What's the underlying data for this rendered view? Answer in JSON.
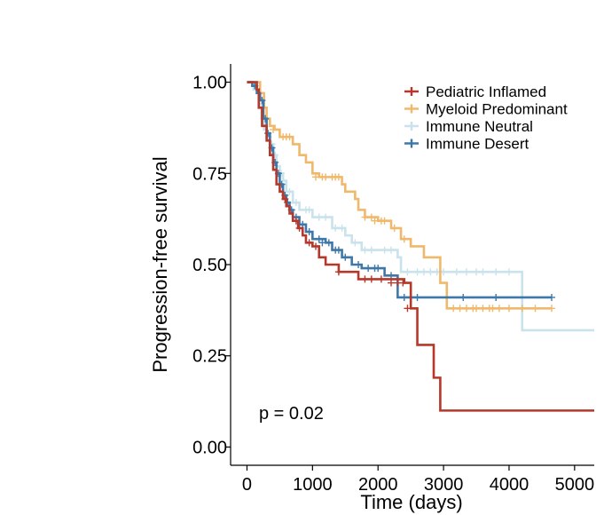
{
  "chart_data": {
    "type": "line",
    "subtype": "kaplan-meier",
    "title": "",
    "xlabel": "Time (days)",
    "ylabel": "Progression-free survival",
    "xlim": [
      -250,
      5300
    ],
    "ylim": [
      -0.05,
      1.05
    ],
    "x_ticks": [
      0,
      1000,
      2000,
      3000,
      4000,
      5000
    ],
    "x_tick_labels": [
      "0",
      "1000",
      "2000",
      "3000",
      "4000",
      "5000"
    ],
    "y_ticks": [
      0,
      0.25,
      0.5,
      0.75,
      1.0
    ],
    "y_tick_labels": [
      "0.00",
      "0.25",
      "0.50",
      "0.75",
      "1.00"
    ],
    "legend_position": "top-right",
    "annotation": "p = 0.02",
    "series": [
      {
        "name": "Pediatric Inflamed",
        "color": "#b5382b",
        "steps": [
          [
            0,
            1.0
          ],
          [
            150,
            0.98
          ],
          [
            180,
            0.93
          ],
          [
            230,
            0.88
          ],
          [
            300,
            0.84
          ],
          [
            350,
            0.8
          ],
          [
            400,
            0.76
          ],
          [
            450,
            0.72
          ],
          [
            500,
            0.7
          ],
          [
            550,
            0.68
          ],
          [
            600,
            0.66
          ],
          [
            650,
            0.64
          ],
          [
            700,
            0.62
          ],
          [
            780,
            0.6
          ],
          [
            850,
            0.58
          ],
          [
            900,
            0.56
          ],
          [
            1000,
            0.55
          ],
          [
            1100,
            0.52
          ],
          [
            1200,
            0.5
          ],
          [
            1400,
            0.48
          ],
          [
            1700,
            0.46
          ],
          [
            2000,
            0.46
          ],
          [
            2400,
            0.45
          ],
          [
            2500,
            0.38
          ],
          [
            2600,
            0.28
          ],
          [
            2850,
            0.19
          ],
          [
            2950,
            0.1
          ],
          [
            5300,
            0.1
          ]
        ],
        "censored": [
          [
            580,
            0.68
          ],
          [
            750,
            0.62
          ],
          [
            800,
            0.6
          ],
          [
            950,
            0.56
          ],
          [
            1050,
            0.55
          ],
          [
            1400,
            0.48
          ],
          [
            1800,
            0.46
          ],
          [
            1900,
            0.46
          ],
          [
            2050,
            0.46
          ],
          [
            2200,
            0.45
          ],
          [
            2300,
            0.45
          ],
          [
            2380,
            0.45
          ],
          [
            2450,
            0.38
          ]
        ]
      },
      {
        "name": "Myeloid Predominant",
        "color": "#f0b86a",
        "steps": [
          [
            0,
            1.0
          ],
          [
            200,
            0.97
          ],
          [
            260,
            0.93
          ],
          [
            300,
            0.9
          ],
          [
            350,
            0.88
          ],
          [
            420,
            0.87
          ],
          [
            500,
            0.85
          ],
          [
            700,
            0.83
          ],
          [
            800,
            0.8
          ],
          [
            900,
            0.78
          ],
          [
            1000,
            0.75
          ],
          [
            1100,
            0.74
          ],
          [
            1450,
            0.72
          ],
          [
            1500,
            0.7
          ],
          [
            1650,
            0.68
          ],
          [
            1700,
            0.65
          ],
          [
            1800,
            0.63
          ],
          [
            2000,
            0.62
          ],
          [
            2200,
            0.6
          ],
          [
            2350,
            0.57
          ],
          [
            2500,
            0.55
          ],
          [
            2700,
            0.52
          ],
          [
            2950,
            0.45
          ],
          [
            3050,
            0.38
          ],
          [
            4650,
            0.38
          ]
        ],
        "censored": [
          [
            400,
            0.87
          ],
          [
            550,
            0.85
          ],
          [
            600,
            0.85
          ],
          [
            650,
            0.85
          ],
          [
            1050,
            0.74
          ],
          [
            1150,
            0.74
          ],
          [
            1200,
            0.74
          ],
          [
            1300,
            0.74
          ],
          [
            1350,
            0.74
          ],
          [
            1400,
            0.74
          ],
          [
            1800,
            0.63
          ],
          [
            1900,
            0.63
          ],
          [
            1950,
            0.62
          ],
          [
            2050,
            0.62
          ],
          [
            2100,
            0.62
          ],
          [
            2250,
            0.6
          ],
          [
            2400,
            0.57
          ],
          [
            3150,
            0.38
          ],
          [
            3250,
            0.38
          ],
          [
            3350,
            0.38
          ],
          [
            3450,
            0.38
          ],
          [
            3500,
            0.38
          ],
          [
            3600,
            0.38
          ],
          [
            3700,
            0.38
          ],
          [
            3750,
            0.38
          ],
          [
            3850,
            0.38
          ],
          [
            4000,
            0.38
          ],
          [
            4200,
            0.38
          ],
          [
            4400,
            0.38
          ],
          [
            4650,
            0.38
          ]
        ]
      },
      {
        "name": "Immune Neutral",
        "color": "#c9e2ec",
        "steps": [
          [
            0,
            1.0
          ],
          [
            100,
            0.98
          ],
          [
            180,
            0.94
          ],
          [
            220,
            0.9
          ],
          [
            260,
            0.87
          ],
          [
            300,
            0.85
          ],
          [
            350,
            0.83
          ],
          [
            400,
            0.8
          ],
          [
            450,
            0.77
          ],
          [
            500,
            0.75
          ],
          [
            550,
            0.73
          ],
          [
            600,
            0.7
          ],
          [
            700,
            0.67
          ],
          [
            800,
            0.65
          ],
          [
            1000,
            0.63
          ],
          [
            1300,
            0.6
          ],
          [
            1500,
            0.58
          ],
          [
            1600,
            0.56
          ],
          [
            1750,
            0.54
          ],
          [
            2000,
            0.54
          ],
          [
            2300,
            0.52
          ],
          [
            2350,
            0.48
          ],
          [
            4150,
            0.48
          ],
          [
            4200,
            0.32
          ],
          [
            5300,
            0.32
          ]
        ],
        "censored": [
          [
            150,
            0.98
          ],
          [
            250,
            0.9
          ],
          [
            330,
            0.85
          ],
          [
            380,
            0.83
          ],
          [
            430,
            0.8
          ],
          [
            520,
            0.75
          ],
          [
            650,
            0.7
          ],
          [
            750,
            0.67
          ],
          [
            900,
            0.65
          ],
          [
            950,
            0.65
          ],
          [
            1100,
            0.63
          ],
          [
            1200,
            0.63
          ],
          [
            1350,
            0.6
          ],
          [
            1450,
            0.6
          ],
          [
            1650,
            0.56
          ],
          [
            1800,
            0.54
          ],
          [
            1900,
            0.54
          ],
          [
            2100,
            0.54
          ],
          [
            2200,
            0.54
          ],
          [
            2450,
            0.48
          ],
          [
            2600,
            0.48
          ],
          [
            2700,
            0.48
          ],
          [
            2800,
            0.48
          ],
          [
            2900,
            0.48
          ],
          [
            3000,
            0.48
          ],
          [
            3200,
            0.48
          ],
          [
            3350,
            0.48
          ],
          [
            3500,
            0.48
          ],
          [
            3600,
            0.48
          ],
          [
            3800,
            0.48
          ],
          [
            4000,
            0.48
          ]
        ]
      },
      {
        "name": "Immune Desert",
        "color": "#3e78a8",
        "steps": [
          [
            0,
            1.0
          ],
          [
            80,
            0.99
          ],
          [
            150,
            0.97
          ],
          [
            200,
            0.95
          ],
          [
            250,
            0.9
          ],
          [
            300,
            0.86
          ],
          [
            350,
            0.82
          ],
          [
            400,
            0.78
          ],
          [
            450,
            0.75
          ],
          [
            500,
            0.72
          ],
          [
            550,
            0.69
          ],
          [
            600,
            0.67
          ],
          [
            650,
            0.65
          ],
          [
            700,
            0.63
          ],
          [
            800,
            0.61
          ],
          [
            900,
            0.59
          ],
          [
            1000,
            0.57
          ],
          [
            1200,
            0.56
          ],
          [
            1300,
            0.54
          ],
          [
            1450,
            0.52
          ],
          [
            1600,
            0.5
          ],
          [
            1750,
            0.49
          ],
          [
            2100,
            0.47
          ],
          [
            2300,
            0.41
          ],
          [
            4650,
            0.41
          ]
        ],
        "censored": [
          [
            120,
            0.99
          ],
          [
            230,
            0.95
          ],
          [
            280,
            0.9
          ],
          [
            320,
            0.86
          ],
          [
            380,
            0.82
          ],
          [
            430,
            0.78
          ],
          [
            480,
            0.75
          ],
          [
            530,
            0.72
          ],
          [
            580,
            0.69
          ],
          [
            620,
            0.67
          ],
          [
            680,
            0.65
          ],
          [
            750,
            0.63
          ],
          [
            850,
            0.61
          ],
          [
            950,
            0.59
          ],
          [
            1100,
            0.57
          ],
          [
            1150,
            0.56
          ],
          [
            1250,
            0.56
          ],
          [
            1350,
            0.54
          ],
          [
            1400,
            0.54
          ],
          [
            1500,
            0.52
          ],
          [
            1700,
            0.5
          ],
          [
            1850,
            0.49
          ],
          [
            1950,
            0.49
          ],
          [
            2000,
            0.49
          ],
          [
            2200,
            0.47
          ],
          [
            2400,
            0.41
          ],
          [
            2500,
            0.41
          ],
          [
            2600,
            0.41
          ],
          [
            3300,
            0.41
          ],
          [
            3800,
            0.41
          ],
          [
            4650,
            0.41
          ]
        ]
      }
    ]
  }
}
